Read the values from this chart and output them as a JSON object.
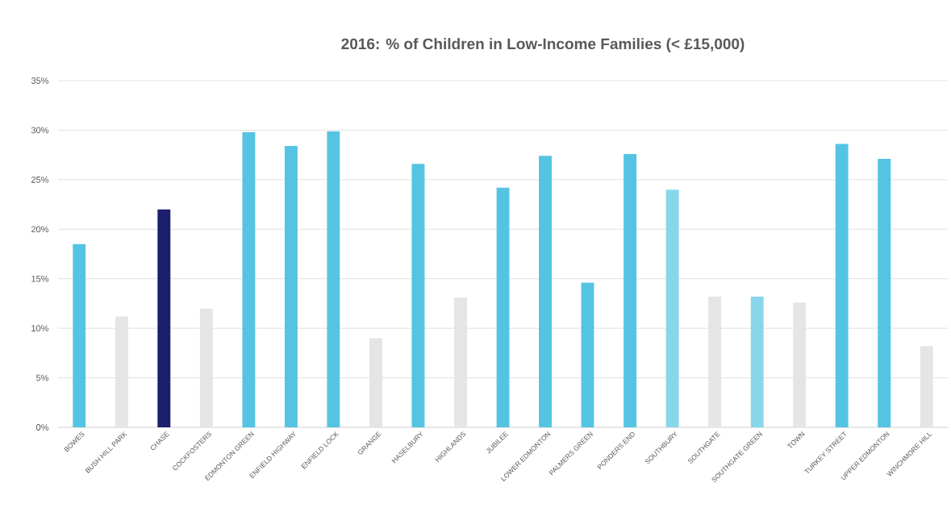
{
  "chart_data": {
    "type": "bar",
    "title": "2016: % of Children in Low-Income Families (< £15,000)",
    "categories": [
      "BOWES",
      "BUSH HILL PARK",
      "CHASE",
      "COCKFOSTERS",
      "EDMONTON GREEN",
      "ENFIELD HIGHWAY",
      "ENFIELD LOCK",
      "GRANGE",
      "HASELBURY",
      "HIGHLANDS",
      "JUBILEE",
      "LOWER EDMONTON",
      "PALMERS GREEN",
      "PONDERS END",
      "SOUTHBURY",
      "SOUTHGATE",
      "SOUTHGATE GREEN",
      "TOWN",
      "TURKEY STREET",
      "UPPER EDMONTON",
      "WINCHMORE HILL"
    ],
    "values": [
      18.5,
      11.2,
      22.0,
      12.0,
      29.8,
      28.4,
      29.9,
      9.0,
      26.6,
      13.1,
      24.2,
      27.4,
      14.6,
      27.6,
      24.0,
      13.2,
      13.2,
      12.6,
      28.6,
      27.1,
      8.2
    ],
    "colors": [
      "#55c4e2",
      "#e5e5e5",
      "#1b1f6c",
      "#e5e5e5",
      "#55c4e2",
      "#55c4e2",
      "#55c4e2",
      "#e5e5e5",
      "#55c4e2",
      "#e5e5e5",
      "#55c4e2",
      "#55c4e2",
      "#55c4e2",
      "#55c4e2",
      "#88d6ea",
      "#e5e5e5",
      "#88d6ea",
      "#e5e5e5",
      "#55c4e2",
      "#55c4e2",
      "#e5e5e5"
    ],
    "ylim": [
      0,
      35
    ],
    "yticks": [
      {
        "value": 0,
        "label": "0%"
      },
      {
        "value": 5,
        "label": "5%"
      },
      {
        "value": 10,
        "label": "10%"
      },
      {
        "value": 15,
        "label": "15%"
      },
      {
        "value": 20,
        "label": "20%"
      },
      {
        "value": 25,
        "label": "25%"
      },
      {
        "value": 30,
        "label": "30%"
      },
      {
        "value": 35,
        "label": "35%"
      }
    ],
    "grid": "y"
  }
}
